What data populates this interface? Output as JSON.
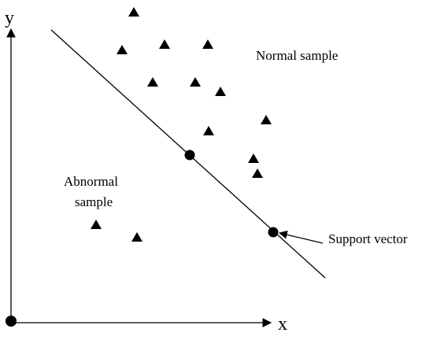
{
  "axes": {
    "x_label": "x",
    "y_label": "y"
  },
  "labels": {
    "normal_sample": "Normal sample",
    "abnormal_sample_line1": "Abnormal",
    "abnormal_sample_line2": "sample",
    "support_vector": "Support vector"
  },
  "markers": {
    "normal_shape": "filled-triangle",
    "abnormal_shape": "filled-triangle",
    "support_vector_shape": "filled-circle",
    "origin_shape": "filled-circle"
  },
  "colors": {
    "ink": "#000000",
    "background": "#ffffff"
  }
}
